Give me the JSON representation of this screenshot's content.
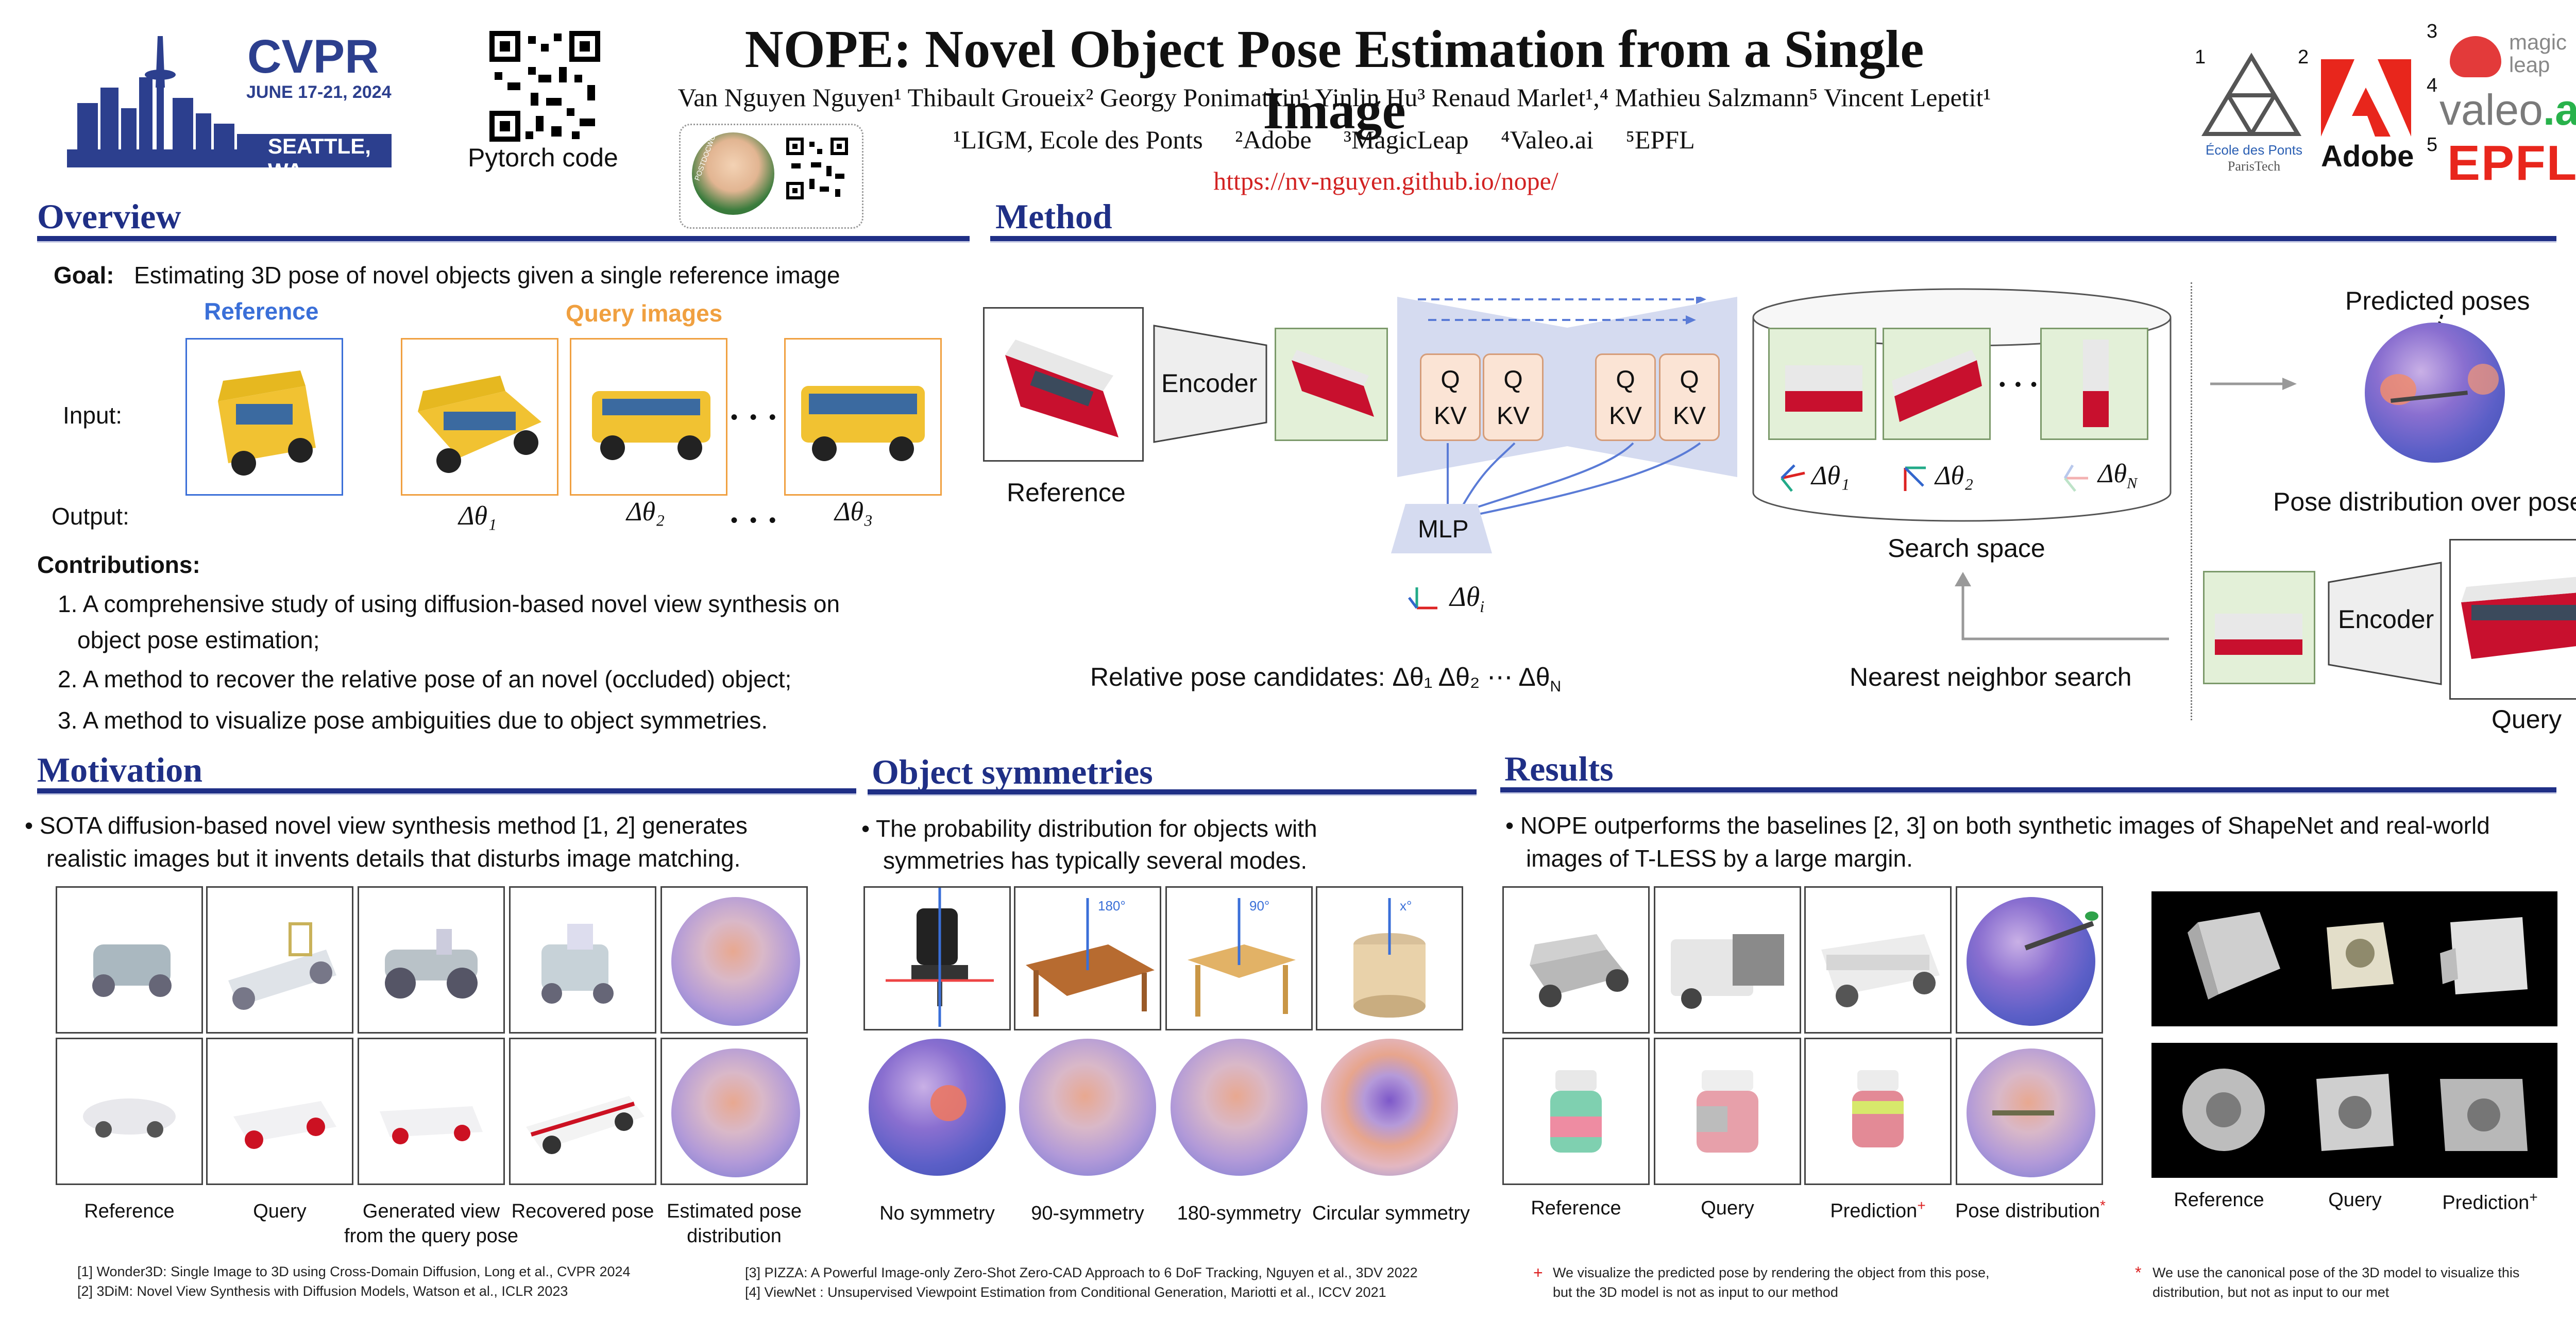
{
  "header": {
    "cvpr": {
      "name": "CVPR",
      "dates": "JUNE 17-21, 2024",
      "city": "SEATTLE, WA"
    },
    "pytorch_label": "Pytorch code",
    "avatar_badge": "POSTDOCWORK",
    "title": "NOPE: Novel Object Pose Estimation from a Single Image",
    "authors": "Van Nguyen Nguyen¹  Thibault Groueix²  Georgy Ponimatkin¹  Yinlin Hu³  Renaud Marlet¹,⁴  Mathieu Salzmann⁵  Vincent Lepetit¹",
    "affiliations": "¹LIGM, Ecole des Ponts     ²Adobe     ³MagicLeap     ⁴Valeo.ai     ⁵EPFL",
    "url": "https://nv-nguyen.github.io/nope/",
    "logos": {
      "n1": "1",
      "n2": "2",
      "n3": "3",
      "n4": "4",
      "n5": "5",
      "enpc": "École des Ponts",
      "enpc_sub": "ParisTech",
      "adobe": "Adobe",
      "magicleap": "magic leap",
      "valeo": "valeo",
      "valeo_ai": ".ai",
      "epfl": "EPFL"
    }
  },
  "overview": {
    "title": "Overview",
    "goal_label": "Goal:",
    "goal_text": "Estimating 3D pose of novel objects given a single reference image",
    "reference_label": "Reference",
    "query_label": "Query images",
    "input_label": "Input:",
    "output_label": "Output:",
    "dots": "• • •",
    "deltas": [
      "Δθ₁",
      "Δθ₂",
      "Δθ₃"
    ],
    "contributions_title": "Contributions:",
    "contributions": [
      "1. A comprehensive study of using diffusion-based novel view synthesis on",
      "object pose estimation;",
      "2. A method to recover the relative pose of an novel (occluded) object;",
      "3. A method to visualize pose ambiguities due to object symmetries."
    ]
  },
  "method": {
    "title": "Method",
    "reference_label": "Reference",
    "encoder": "Encoder",
    "q": "Q",
    "kv": "KV",
    "mlp": "MLP",
    "delta_i": "Δθ",
    "delta_i_sub": "i",
    "candidates": "Relative pose candidates:  Δθ₁ Δθ₂ ⋯ Δθ",
    "candidates_sub": "N",
    "search_space": "Search space",
    "search_deltas": [
      "Δθ₁",
      "Δθ₂",
      "Δθ"
    ],
    "search_delta_sub": "N",
    "search_dots": "• • •",
    "nn_search": "Nearest neighbor search",
    "predicted_poses": "Predicted poses",
    "pose_distribution": "Pose distribution over poses",
    "query_encoder": "Encoder",
    "query_label": "Query"
  },
  "motivation": {
    "title": "Motivation",
    "bullet": "• SOTA diffusion-based novel view synthesis method [1, 2] generates",
    "bullet2": "realistic images but it invents details that disturbs image matching.",
    "captions": [
      "Reference",
      "Query",
      "Generated view",
      "from the query pose",
      "Recovered pose",
      "Estimated pose",
      "distribution"
    ]
  },
  "symmetries": {
    "title": "Object symmetries",
    "bullet": "• The probability distribution for objects with",
    "bullet2": "symmetries has typically several modes.",
    "angles": [
      "180°",
      "90°",
      "x°"
    ],
    "captions": [
      "No symmetry",
      "90-symmetry",
      "180-symmetry",
      "Circular symmetry"
    ]
  },
  "results": {
    "title": "Results",
    "bullet": "• NOPE outperforms the baselines [2, 3] on both synthetic images of ShapeNet and real-world",
    "bullet2": "images of T-LESS by a large margin.",
    "captions": [
      "Reference",
      "Query",
      "Prediction",
      "Pose distribution"
    ],
    "tless_captions": [
      "Reference",
      "Query",
      "Prediction"
    ],
    "plus": "+",
    "star": "*"
  },
  "footer": {
    "refs_left": [
      "[1] Wonder3D: Single Image to 3D using Cross-Domain Diffusion, Long et al., CVPR 2024",
      "[2] 3DiM: Novel View Synthesis with Diffusion Models, Watson et al.,  ICLR 2023"
    ],
    "refs_mid": [
      "[3] PIZZA: A Powerful Image-only Zero-Shot Zero-CAD Approach to 6 DoF Tracking, Nguyen et al.,  3DV 2022",
      "[4] ViewNet : Unsupervised Viewpoint Estimation from Conditional Generation, Mariotti et al., ICCV 2021"
    ],
    "note_plus_mark": "+",
    "note_plus": [
      "We visualize the predicted pose by rendering the object from this pose,",
      "but the 3D model is not as input to our method"
    ],
    "note_star_mark": "*",
    "note_star": [
      "We use the canonical pose of the 3D model to visualize this",
      "distribution, but not as input to our met"
    ]
  },
  "colors": {
    "section_blue": "#1f2f86",
    "url_red": "#d22222",
    "reference_border": "#3a6fd8",
    "query_border": "#f0a040"
  }
}
